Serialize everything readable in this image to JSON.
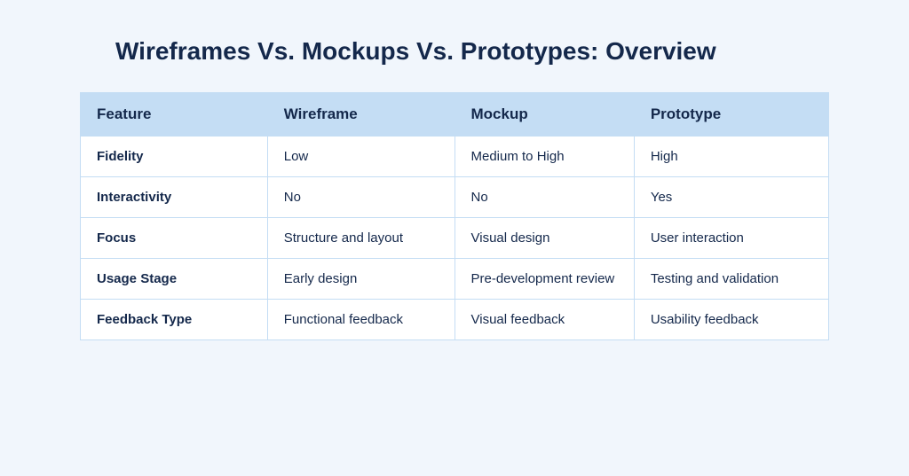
{
  "title": "Wireframes Vs. Mockups Vs. Prototypes: Overview",
  "colors": {
    "page_bg": "#f1f6fc",
    "text_primary": "#14284b",
    "header_bg": "#c4ddf4",
    "row_bg": "#ffffff",
    "border": "#c4ddf4"
  },
  "typography": {
    "title_fontsize": 28,
    "header_fontsize": 17,
    "row_label_fontsize": 15,
    "cell_fontsize": 15
  },
  "table": {
    "columns": [
      "Feature",
      "Wireframe",
      "Mockup",
      "Prototype"
    ],
    "column_widths": [
      "25%",
      "25%",
      "24%",
      "26%"
    ],
    "rows": [
      {
        "label": "Fidelity",
        "cells": [
          "Low",
          "Medium to High",
          "High"
        ]
      },
      {
        "label": "Interactivity",
        "cells": [
          "No",
          "No",
          "Yes"
        ]
      },
      {
        "label": "Focus",
        "cells": [
          "Structure and layout",
          "Visual design",
          "User interaction"
        ]
      },
      {
        "label": "Usage Stage",
        "cells": [
          "Early design",
          "Pre-development review",
          "Testing and validation"
        ]
      },
      {
        "label": "Feedback Type",
        "cells": [
          "Functional feedback",
          "Visual feedback",
          "Usability feedback"
        ]
      }
    ]
  }
}
